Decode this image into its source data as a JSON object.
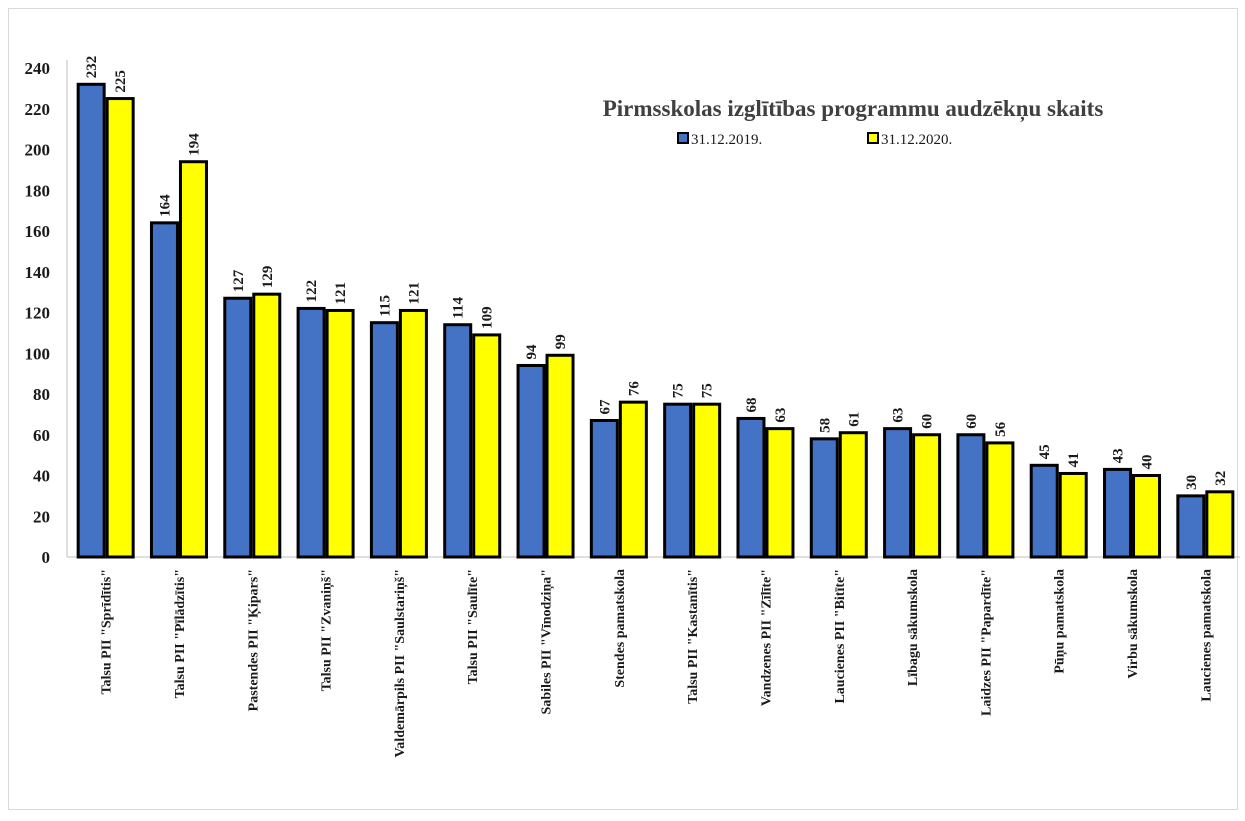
{
  "chart_data": {
    "type": "bar",
    "title": "Pirmsskolas izglītības programmu audzēkņu skaits",
    "xlabel": "",
    "ylabel": "",
    "ylim": [
      0,
      240
    ],
    "yticks": [
      0,
      20,
      40,
      60,
      80,
      100,
      120,
      140,
      160,
      180,
      200,
      220,
      240
    ],
    "grid": false,
    "legend_position": "top-right",
    "categories": [
      "Talsu PII \"Sprīdītis\"",
      "Talsu PII \"Pīlādzītis\"",
      "Pastendes PII \"Ķipars\"",
      "Talsu PII \"Zvaniņš\"",
      "Valdemārpils PII \"Saulstariņš\"",
      "Talsu PII \"Saulīte\"",
      "Sabiles PII \"Vīnodziņa\"",
      "Stendes pamatskola",
      "Talsu PII \"Kastanītis\"",
      "Vandzenes PII \"Zīlīte\"",
      "Laucienes PII \"Bitīte\"",
      "Lībagu sākumskola",
      "Laidzes PII \"Papardīte\"",
      "Pūņu pamatskola",
      "Virbu sākumskola",
      "Laucienes pamatskola"
    ],
    "series": [
      {
        "name": "31.12.2019.",
        "color": "#4472c4",
        "values": [
          232,
          164,
          127,
          122,
          115,
          114,
          94,
          67,
          75,
          68,
          58,
          63,
          60,
          45,
          43,
          30
        ]
      },
      {
        "name": "31.12.2020.",
        "color": "#ffff00",
        "values": [
          225,
          194,
          129,
          121,
          121,
          109,
          99,
          76,
          75,
          63,
          61,
          60,
          56,
          41,
          40,
          32
        ]
      }
    ],
    "data_labels": true
  }
}
